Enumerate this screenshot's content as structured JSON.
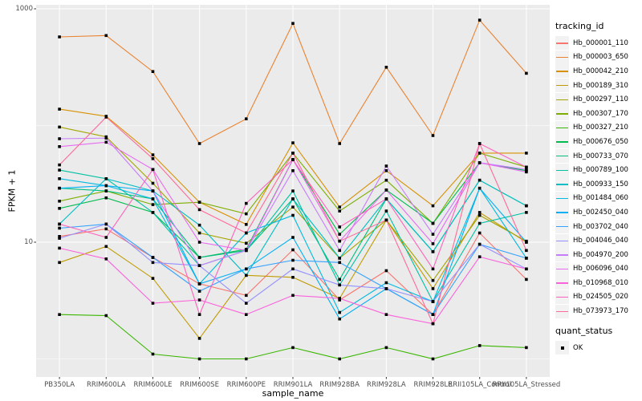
{
  "chart_data": {
    "type": "line",
    "title": "",
    "xlabel": "sample_name",
    "ylabel": "FPKM + 1",
    "y_scale": "log10",
    "grid": true,
    "legend_position": "right",
    "ylim": [
      0.7,
      1080
    ],
    "y_major_breaks": [
      1000,
      10
    ],
    "y_tick_labels": [
      "1000",
      "10"
    ],
    "y_minor_breaks": [
      100,
      1
    ],
    "panel_background": "#EBEBEB",
    "gridline_color": "#FFFFFF",
    "point_color": "#000000",
    "axis_text_color": "#4D4D4D",
    "categories": [
      "PB350LA",
      "RRIM600LA",
      "RRIM600LE",
      "RRIM600SE",
      "RRIM600PE",
      "RRIM901LA",
      "RRIM928BA",
      "RRIM928LA",
      "RRIM928LE",
      "RRII105LA_Control",
      "RRII105LA_Stressed"
    ],
    "series": [
      {
        "name": "Hb_000001_110",
        "color": "#F8766D",
        "values": [
          11.2,
          13.0,
          7.4,
          4.4,
          3.5,
          8.6,
          3.2,
          5.7,
          2.4,
          12.0,
          4.8
        ]
      },
      {
        "name": "Hb_000003_650",
        "color": "#EA8331",
        "values": [
          575,
          590,
          290,
          70,
          114,
          750,
          70,
          316,
          82,
          800,
          280
        ]
      },
      {
        "name": "Hb_000042_210",
        "color": "#D89000",
        "values": [
          138,
          120,
          56,
          22,
          14.2,
          71,
          20,
          41,
          20.5,
          58,
          58
        ]
      },
      {
        "name": "Hb_000189_310",
        "color": "#C09B00",
        "values": [
          6.7,
          9.2,
          4.9,
          1.5,
          5.2,
          5.0,
          3.3,
          15.5,
          4.0,
          18,
          10
        ]
      },
      {
        "name": "Hb_000297_110",
        "color": "#A3A500",
        "values": [
          97,
          80,
          32,
          12,
          9.8,
          20,
          7.3,
          15.5,
          4.7,
          17,
          10.2
        ]
      },
      {
        "name": "Hb_000307_170",
        "color": "#7CAE00",
        "values": [
          22.5,
          27.5,
          21,
          22,
          17.5,
          58,
          18.5,
          34,
          14.5,
          58,
          44
        ]
      },
      {
        "name": "Hb_000327_210",
        "color": "#39B600",
        "values": [
          2.4,
          2.35,
          1.1,
          1.0,
          1.0,
          1.25,
          1.0,
          1.25,
          1.0,
          1.3,
          1.25
        ]
      },
      {
        "name": "Hb_000676_050",
        "color": "#00BB4E",
        "values": [
          19.5,
          24,
          18,
          7.4,
          8.7,
          51,
          11.7,
          28,
          14.5,
          48,
          41
        ]
      },
      {
        "name": "Hb_000733_070",
        "color": "#00BF7D",
        "values": [
          29,
          27.5,
          23.5,
          7.4,
          8.5,
          23.5,
          4.8,
          23.5,
          8.3,
          34,
          20.5
        ]
      },
      {
        "name": "Hb_000789_100",
        "color": "#00C1A3",
        "values": [
          41.5,
          35,
          18,
          6.3,
          8.5,
          27.5,
          4.3,
          18.5,
          3.1,
          14.5,
          18
        ]
      },
      {
        "name": "Hb_000933_150",
        "color": "#00BFC4",
        "values": [
          14.3,
          35,
          27.5,
          14,
          5.2,
          23.5,
          7.3,
          23.5,
          8.3,
          34,
          20.5
        ]
      },
      {
        "name": "Hb_001484_060",
        "color": "#00BAE0",
        "values": [
          35,
          30.5,
          23.5,
          4.4,
          12,
          17,
          2.5,
          4.5,
          3.1,
          29,
          7.3
        ]
      },
      {
        "name": "Hb_002450_040",
        "color": "#00B0F6",
        "values": [
          29,
          30.5,
          27.5,
          4.4,
          5.9,
          11,
          2.2,
          4.0,
          2.4,
          29,
          10
        ]
      },
      {
        "name": "Hb_003702_040",
        "color": "#35A2FF",
        "values": [
          13.2,
          14.3,
          7.4,
          3.8,
          5.9,
          7.0,
          6.7,
          4.0,
          2.4,
          9.6,
          7.3
        ]
      },
      {
        "name": "Hb_004046_040",
        "color": "#9590FF",
        "values": [
          10.8,
          14.3,
          6.7,
          6.3,
          3.0,
          5.9,
          4.3,
          4.0,
          3.1,
          9.6,
          5.9
        ]
      },
      {
        "name": "Hb_004970_200",
        "color": "#C77CFF",
        "values": [
          77,
          78,
          27.5,
          6.3,
          8.5,
          41,
          8.5,
          45,
          11.7,
          48,
          42
        ]
      },
      {
        "name": "Hb_006096_040",
        "color": "#E76BF3",
        "values": [
          66,
          72,
          42,
          10,
          8.5,
          51,
          10.2,
          28,
          9.7,
          48,
          40
        ]
      },
      {
        "name": "Hb_010968_010",
        "color": "#FA62DB",
        "values": [
          8.9,
          7.2,
          3.0,
          3.2,
          2.4,
          3.5,
          3.3,
          2.4,
          2.0,
          7.5,
          5.9
        ]
      },
      {
        "name": "Hb_024505_020",
        "color": "#FF62BC",
        "values": [
          14.3,
          11,
          42,
          2.4,
          21.5,
          51,
          13.5,
          23.5,
          5.9,
          70,
          44
        ]
      },
      {
        "name": "Hb_073973_170",
        "color": "#FF6A98",
        "values": [
          46,
          118,
          52,
          19,
          12,
          58,
          10.2,
          15.5,
          2.0,
          70,
          8.5
        ]
      }
    ],
    "legend": {
      "tracking_title": "tracking_id",
      "quant_title": "quant_status",
      "quant_items": [
        {
          "label": "OK",
          "color": "#000000",
          "shape": "square"
        }
      ]
    }
  }
}
